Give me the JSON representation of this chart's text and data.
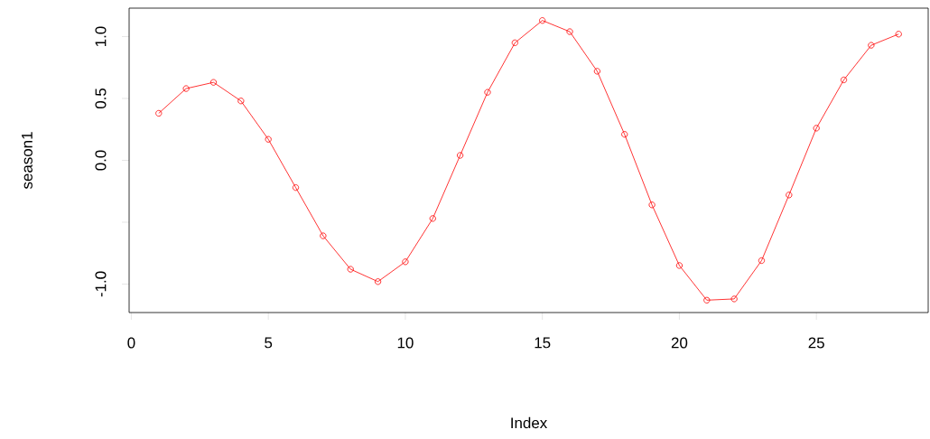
{
  "chart_data": {
    "type": "line",
    "xlabel": "Index",
    "ylabel": "season1",
    "x": [
      1,
      2,
      3,
      4,
      5,
      6,
      7,
      8,
      9,
      10,
      11,
      12,
      13,
      14,
      15,
      16,
      17,
      18,
      19,
      20,
      21,
      22,
      23,
      24,
      25,
      26,
      27,
      28
    ],
    "series": [
      {
        "color": "#ff0000",
        "values": [
          0.38,
          0.58,
          0.63,
          0.48,
          0.17,
          -0.22,
          -0.61,
          -0.88,
          -0.98,
          -0.82,
          -0.47,
          0.04,
          0.55,
          0.95,
          1.13,
          1.04,
          0.72,
          0.21,
          -0.36,
          -0.85,
          -1.13,
          -1.12,
          -0.81,
          -0.28,
          0.26,
          0.65,
          0.93,
          1.02
        ]
      }
    ],
    "xlim": [
      -0.08,
      29.08
    ],
    "ylim": [
      -1.23,
      1.23
    ],
    "xticks": [
      0,
      5,
      10,
      15,
      20,
      25
    ],
    "yticks": [
      {
        "value": -1.0,
        "label": "-1.0"
      },
      {
        "value": -0.5,
        "label": null
      },
      {
        "value": 0.0,
        "label": "0.0"
      },
      {
        "value": 0.5,
        "label": "0.5"
      },
      {
        "value": 1.0,
        "label": "1.0"
      }
    ],
    "grid": false,
    "marker": "circle",
    "line_style": "solid"
  }
}
